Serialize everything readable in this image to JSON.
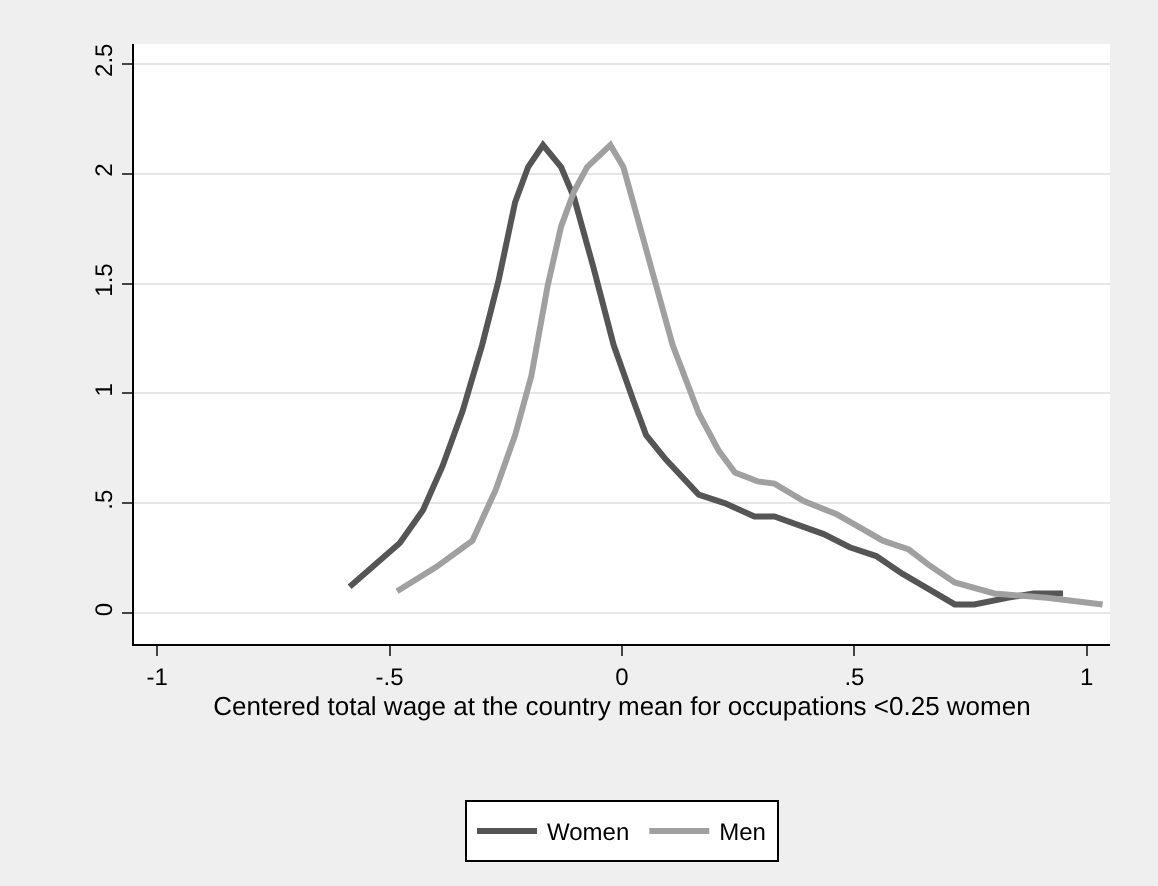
{
  "chart_data": {
    "type": "line",
    "xlabel": "Centered total wage at the country mean for occupations <0.25 women",
    "xlim": [
      -1.05,
      1.05
    ],
    "xticks": [
      -1,
      {
        "value": -0.5,
        "label": "-.5"
      },
      0,
      {
        "value": 0.5,
        "label": ".5"
      },
      1
    ],
    "ylim": [
      -0.14,
      2.59
    ],
    "yticks": [
      0,
      {
        "value": 0.5,
        "label": ".5"
      },
      1,
      1.5,
      2,
      2.5
    ],
    "grid": "y",
    "legend": "bottom",
    "marker": "none",
    "line_style": "solid",
    "series": [
      {
        "name": "Women",
        "color": "#555555",
        "x": [
          -0.586,
          -0.478,
          -0.428,
          -0.386,
          -0.343,
          -0.301,
          -0.266,
          -0.23,
          -0.202,
          -0.17,
          -0.131,
          -0.103,
          -0.061,
          -0.018,
          0.024,
          0.052,
          0.094,
          0.165,
          0.222,
          0.285,
          0.328,
          0.434,
          0.49,
          0.547,
          0.603,
          0.66,
          0.716,
          0.758,
          0.829,
          0.886,
          0.949
        ],
        "values": [
          0.12,
          0.32,
          0.47,
          0.67,
          0.92,
          1.22,
          1.51,
          1.87,
          2.03,
          2.13,
          2.03,
          1.89,
          1.57,
          1.22,
          0.97,
          0.81,
          0.7,
          0.54,
          0.5,
          0.44,
          0.44,
          0.36,
          0.3,
          0.26,
          0.18,
          0.11,
          0.04,
          0.04,
          0.07,
          0.09,
          0.09
        ]
      },
      {
        "name": "Men",
        "color": "#a0a0a0",
        "x": [
          -0.484,
          -0.4,
          -0.322,
          -0.272,
          -0.23,
          -0.195,
          -0.16,
          -0.131,
          -0.103,
          -0.075,
          -0.025,
          0.003,
          0.024,
          0.067,
          0.109,
          0.165,
          0.208,
          0.243,
          0.292,
          0.328,
          0.391,
          0.462,
          0.504,
          0.561,
          0.617,
          0.66,
          0.716,
          0.801,
          0.914,
          1.034
        ],
        "values": [
          0.1,
          0.21,
          0.33,
          0.56,
          0.81,
          1.08,
          1.49,
          1.76,
          1.92,
          2.03,
          2.13,
          2.03,
          1.87,
          1.54,
          1.22,
          0.91,
          0.74,
          0.64,
          0.6,
          0.59,
          0.51,
          0.45,
          0.4,
          0.33,
          0.29,
          0.22,
          0.14,
          0.09,
          0.07,
          0.04
        ]
      }
    ]
  }
}
